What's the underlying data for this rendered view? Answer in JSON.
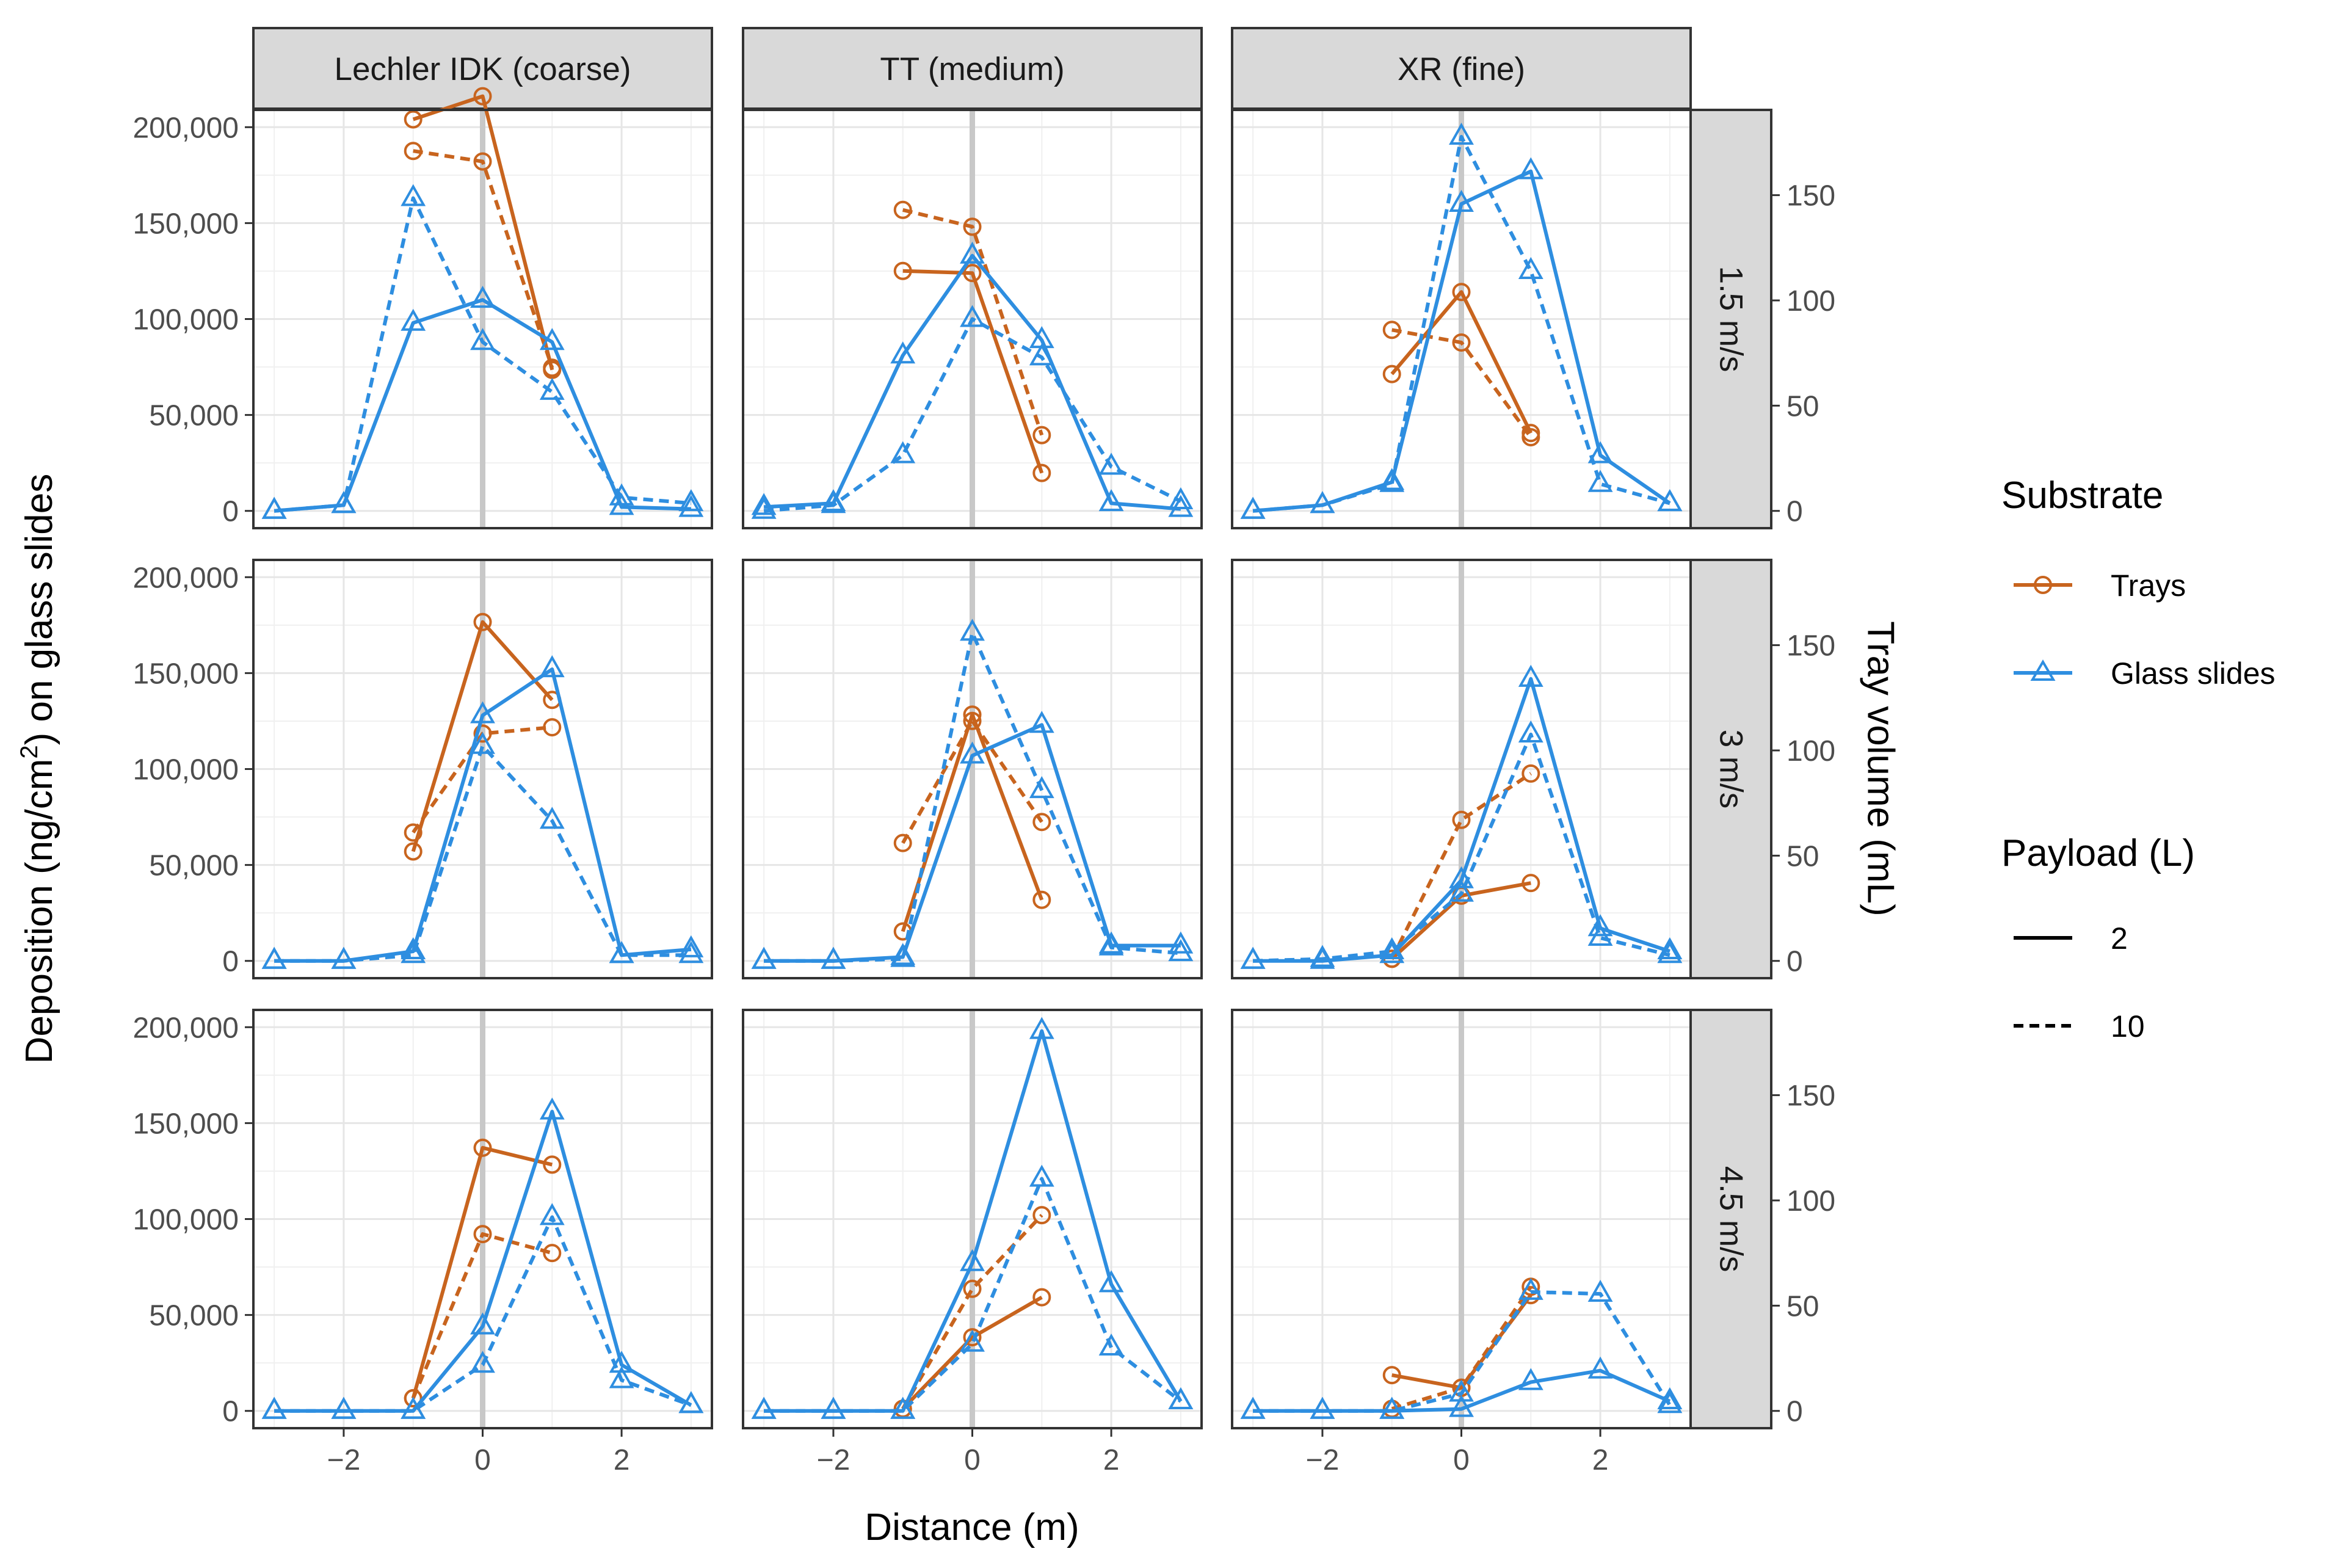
{
  "chart_data": {
    "type": "line",
    "x_axis_title": "Distance (m)",
    "y_axis_title_parts": [
      "Deposition (ng/cm",
      "2",
      ") on glass slides"
    ],
    "y2_axis_title": "Tray volume (mL)",
    "x_domain": [
      -3.3,
      3.3
    ],
    "y_domain": [
      -9000,
      209000
    ],
    "y2_domain": [
      -8.2,
      190.5
    ],
    "x_ticks": [
      -2,
      0,
      2
    ],
    "x_tick_labels": [
      "−2",
      "0",
      "2"
    ],
    "y_ticks": [
      0,
      50000,
      100000,
      150000,
      200000
    ],
    "y_tick_labels": [
      "0",
      "50,000",
      "100,000",
      "150,000",
      "200,000"
    ],
    "y2_ticks": [
      0,
      50,
      100,
      150
    ],
    "y2_tick_labels": [
      "0",
      "50",
      "100",
      "150"
    ],
    "column_labels": [
      "Lechler IDK  (coarse)",
      "TT (medium)",
      "XR (fine)"
    ],
    "row_labels": [
      "1.5 m/s",
      "3 m/s",
      "4.5 m/s"
    ],
    "colors": {
      "trays": "#c8641e",
      "glass": "#2e8ee0",
      "grid": "#e6e6e6",
      "zero_line": "#c8c8c8",
      "strip_bg": "#d9d9d9",
      "border": "#333333"
    },
    "legend": {
      "substrate_title": "Substrate",
      "substrate_items": [
        {
          "label": "Trays",
          "key": "trays"
        },
        {
          "label": "Glass slides",
          "key": "glass"
        }
      ],
      "payload_title": "Payload (L)",
      "payload_items": [
        {
          "label": "2",
          "dash": "solid"
        },
        {
          "label": "10",
          "dash": "dashed"
        }
      ]
    },
    "panels": [
      {
        "row": 0,
        "col": 0,
        "glass_2": [
          [
            -3,
            0
          ],
          [
            -2,
            3000
          ],
          [
            -1,
            98000
          ],
          [
            0,
            110000
          ],
          [
            1,
            88000
          ],
          [
            2,
            2000
          ],
          [
            3,
            1000
          ]
        ],
        "glass_10": [
          [
            -3,
            0
          ],
          [
            -2,
            3000
          ],
          [
            -1,
            163000
          ],
          [
            0,
            88000
          ],
          [
            1,
            62000
          ],
          [
            2,
            7000
          ],
          [
            3,
            4000
          ]
        ],
        "trays_2": [
          [
            -1,
            186000
          ],
          [
            0,
            197000
          ],
          [
            1,
            67000
          ]
        ],
        "trays_10": [
          [
            -1,
            171000
          ],
          [
            0,
            166000
          ],
          [
            1,
            68000
          ]
        ]
      },
      {
        "row": 0,
        "col": 1,
        "glass_2": [
          [
            -3,
            2000
          ],
          [
            -2,
            4000
          ],
          [
            -1,
            81000
          ],
          [
            0,
            133000
          ],
          [
            1,
            89000
          ],
          [
            2,
            4000
          ],
          [
            3,
            1000
          ]
        ],
        "glass_10": [
          [
            -3,
            0
          ],
          [
            -2,
            3000
          ],
          [
            -1,
            29000
          ],
          [
            0,
            100000
          ],
          [
            1,
            80000
          ],
          [
            2,
            23000
          ],
          [
            3,
            5000
          ]
        ],
        "trays_2": [
          [
            -1,
            114000
          ],
          [
            0,
            113000
          ],
          [
            1,
            18000
          ]
        ],
        "trays_10": [
          [
            -1,
            143000
          ],
          [
            0,
            135000
          ],
          [
            1,
            36000
          ]
        ]
      },
      {
        "row": 0,
        "col": 2,
        "glass_2": [
          [
            -3,
            0
          ],
          [
            -2,
            3000
          ],
          [
            -1,
            15000
          ],
          [
            0,
            160000
          ],
          [
            1,
            177000
          ],
          [
            2,
            29000
          ],
          [
            3,
            4000
          ]
        ],
        "glass_10": [
          [
            -3,
            0
          ],
          [
            -2,
            3000
          ],
          [
            -1,
            14000
          ],
          [
            0,
            195000
          ],
          [
            1,
            125000
          ],
          [
            2,
            14000
          ],
          [
            3,
            4000
          ]
        ],
        "trays_2": [
          [
            -1,
            65000
          ],
          [
            0,
            104000
          ],
          [
            1,
            37000
          ]
        ],
        "trays_10": [
          [
            -1,
            86000
          ],
          [
            0,
            80000
          ],
          [
            1,
            35000
          ]
        ]
      },
      {
        "row": 1,
        "col": 0,
        "glass_2": [
          [
            -3,
            0
          ],
          [
            -2,
            0
          ],
          [
            -1,
            5000
          ],
          [
            0,
            128000
          ],
          [
            1,
            152000
          ],
          [
            2,
            3000
          ],
          [
            3,
            6000
          ]
        ],
        "glass_10": [
          [
            -3,
            0
          ],
          [
            -2,
            0
          ],
          [
            -1,
            3000
          ],
          [
            0,
            112000
          ],
          [
            1,
            73000
          ],
          [
            2,
            3000
          ],
          [
            3,
            3000
          ]
        ],
        "trays_2": [
          [
            -1,
            52000
          ],
          [
            0,
            161000
          ],
          [
            1,
            124000
          ]
        ],
        "trays_10": [
          [
            -1,
            61000
          ],
          [
            0,
            108000
          ],
          [
            1,
            111000
          ]
        ]
      },
      {
        "row": 1,
        "col": 1,
        "glass_2": [
          [
            -3,
            0
          ],
          [
            -2,
            0
          ],
          [
            -1,
            2000
          ],
          [
            0,
            107000
          ],
          [
            1,
            123000
          ],
          [
            2,
            8000
          ],
          [
            3,
            8000
          ]
        ],
        "glass_10": [
          [
            -3,
            0
          ],
          [
            -2,
            0
          ],
          [
            -1,
            1000
          ],
          [
            0,
            171000
          ],
          [
            1,
            89000
          ],
          [
            2,
            7000
          ],
          [
            3,
            4000
          ]
        ],
        "trays_2": [
          [
            -1,
            14000
          ],
          [
            0,
            117000
          ],
          [
            1,
            29000
          ]
        ],
        "trays_10": [
          [
            -1,
            56000
          ],
          [
            0,
            114000
          ],
          [
            1,
            66000
          ]
        ]
      },
      {
        "row": 1,
        "col": 2,
        "glass_2": [
          [
            -3,
            0
          ],
          [
            -2,
            0
          ],
          [
            -1,
            3000
          ],
          [
            0,
            42000
          ],
          [
            1,
            147000
          ],
          [
            2,
            17000
          ],
          [
            3,
            5000
          ]
        ],
        "glass_10": [
          [
            -3,
            0
          ],
          [
            -2,
            1000
          ],
          [
            -1,
            5000
          ],
          [
            0,
            35000
          ],
          [
            1,
            118000
          ],
          [
            2,
            12000
          ],
          [
            3,
            3000
          ]
        ],
        "trays_2": [
          [
            -1,
            1000
          ],
          [
            0,
            31000
          ],
          [
            1,
            37000
          ]
        ],
        "trays_10": [
          [
            -1,
            1000
          ],
          [
            0,
            67000
          ],
          [
            1,
            89000
          ]
        ]
      },
      {
        "row": 2,
        "col": 0,
        "glass_2": [
          [
            -3,
            0
          ],
          [
            -2,
            0
          ],
          [
            -1,
            0
          ],
          [
            0,
            44000
          ],
          [
            1,
            156000
          ],
          [
            2,
            24000
          ],
          [
            3,
            3000
          ]
        ],
        "glass_10": [
          [
            -3,
            0
          ],
          [
            -2,
            0
          ],
          [
            -1,
            0
          ],
          [
            0,
            24000
          ],
          [
            1,
            101000
          ],
          [
            2,
            16000
          ],
          [
            3,
            3000
          ]
        ],
        "trays_2": [
          [
            -1,
            6000
          ],
          [
            0,
            125000
          ],
          [
            1,
            117000
          ]
        ],
        "trays_10": [
          [
            -1,
            6000
          ],
          [
            0,
            84000
          ],
          [
            1,
            75000
          ]
        ]
      },
      {
        "row": 2,
        "col": 1,
        "glass_2": [
          [
            -3,
            0
          ],
          [
            -2,
            0
          ],
          [
            -1,
            0
          ],
          [
            0,
            77000
          ],
          [
            1,
            198000
          ],
          [
            2,
            66000
          ],
          [
            3,
            5000
          ]
        ],
        "glass_10": [
          [
            -3,
            0
          ],
          [
            -2,
            0
          ],
          [
            -1,
            0
          ],
          [
            0,
            35000
          ],
          [
            1,
            121000
          ],
          [
            2,
            33000
          ],
          [
            3,
            5000
          ]
        ],
        "trays_2": [
          [
            -1,
            1000
          ],
          [
            0,
            35000
          ],
          [
            1,
            54000
          ]
        ],
        "trays_10": [
          [
            -1,
            1000
          ],
          [
            0,
            58000
          ],
          [
            1,
            93000
          ]
        ]
      },
      {
        "row": 2,
        "col": 2,
        "glass_2": [
          [
            -3,
            0
          ],
          [
            -2,
            0
          ],
          [
            -1,
            0
          ],
          [
            0,
            1000
          ],
          [
            1,
            15000
          ],
          [
            2,
            21000
          ],
          [
            3,
            5000
          ]
        ],
        "glass_10": [
          [
            -3,
            0
          ],
          [
            -2,
            0
          ],
          [
            -1,
            0
          ],
          [
            0,
            9000
          ],
          [
            1,
            62000
          ],
          [
            2,
            61000
          ],
          [
            3,
            3000
          ]
        ],
        "trays_2": [
          [
            -1,
            17000
          ],
          [
            0,
            11000
          ],
          [
            1,
            55000
          ]
        ],
        "trays_10": [
          [
            -1,
            1000
          ],
          [
            0,
            11000
          ],
          [
            1,
            59000
          ]
        ]
      }
    ]
  }
}
